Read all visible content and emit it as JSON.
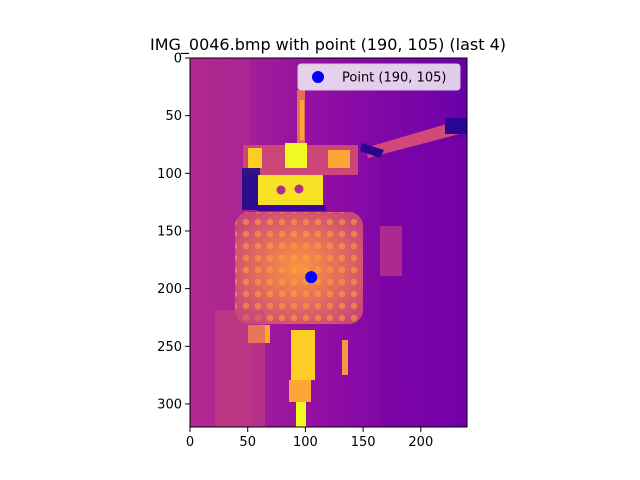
{
  "chart_data": {
    "type": "scatter",
    "title": "IMG_0046.bmp with point (190, 105) (last 4)",
    "xlabel": "",
    "ylabel": "",
    "xlim": [
      0,
      240
    ],
    "ylim": [
      320,
      0
    ],
    "x_ticks": [
      0,
      50,
      100,
      150,
      200
    ],
    "y_ticks": [
      0,
      50,
      100,
      150,
      200,
      250,
      300
    ],
    "grid": false,
    "legend_position": "top-right",
    "background_image": "thermal image (plasma colormap)",
    "series": [
      {
        "name": "Point (190, 105)",
        "x": [
          105
        ],
        "y": [
          190
        ],
        "color": "#0000ff",
        "marker": "circle"
      }
    ]
  }
}
